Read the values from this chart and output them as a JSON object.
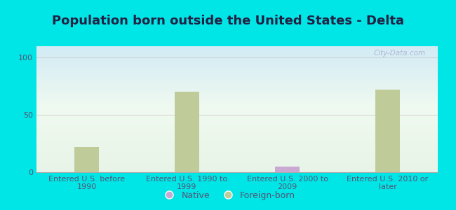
{
  "title": "Population born outside the United States - Delta",
  "categories": [
    "Entered U.S. before\n1990",
    "Entered U.S. 1990 to\n1999",
    "Entered U.S. 2000 to\n2009",
    "Entered U.S. 2010 or\nlater"
  ],
  "native_values": [
    0,
    0,
    5,
    0
  ],
  "foreign_born_values": [
    22,
    70,
    0,
    72
  ],
  "native_color": "#c9a8d4",
  "foreign_born_color": "#bfcc99",
  "background_color": "#00e5e5",
  "plot_bg_top": "#e8f4e8",
  "plot_bg_bottom": "#cce8f0",
  "ylim": [
    0,
    110
  ],
  "yticks": [
    0,
    50,
    100
  ],
  "bar_width": 0.25,
  "title_fontsize": 13,
  "tick_fontsize": 8,
  "legend_fontsize": 9,
  "watermark_text": "City-Data.com",
  "grid_color": "#d0d0d0",
  "tick_color": "#555577",
  "title_color": "#222244"
}
